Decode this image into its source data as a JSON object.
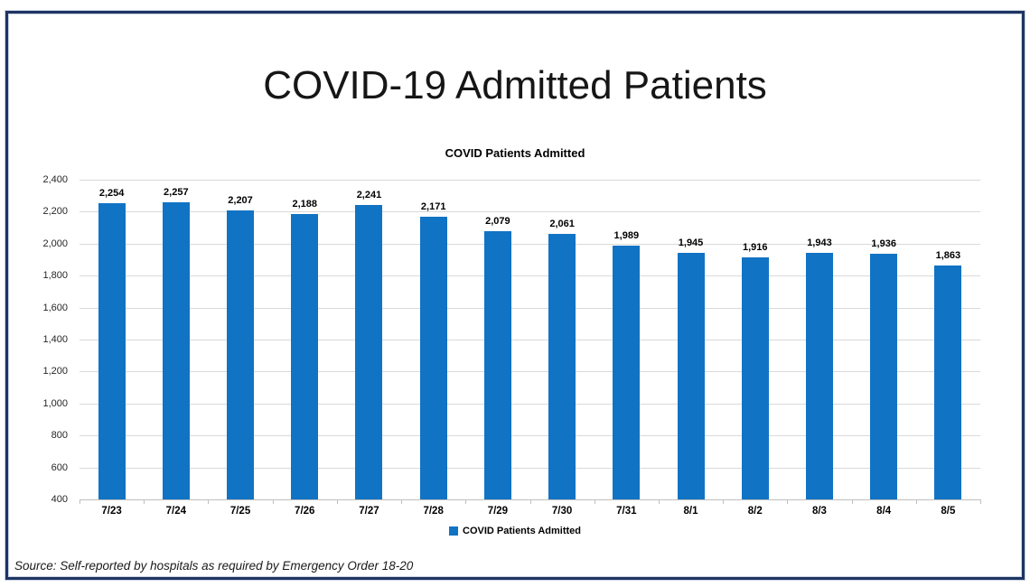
{
  "page": {
    "title": "COVID-19 Admitted Patients",
    "source_note": "Source: Self-reported by hospitals as required by Emergency Order 18-20",
    "border_color": "#1e3563",
    "background_color": "#ffffff"
  },
  "chart_data": {
    "type": "bar",
    "title": "COVID Patients Admitted",
    "categories": [
      "7/23",
      "7/24",
      "7/25",
      "7/26",
      "7/27",
      "7/28",
      "7/29",
      "7/30",
      "7/31",
      "8/1",
      "8/2",
      "8/3",
      "8/4",
      "8/5"
    ],
    "series": [
      {
        "name": "COVID Patients Admitted",
        "values": [
          2254,
          2257,
          2207,
          2188,
          2241,
          2171,
          2079,
          2061,
          1989,
          1945,
          1916,
          1943,
          1936,
          1863
        ]
      }
    ],
    "data_labels": [
      "2,254",
      "2,257",
      "2,207",
      "2,188",
      "2,241",
      "2,171",
      "2,079",
      "2,061",
      "1,989",
      "1,945",
      "1,916",
      "1,943",
      "1,936",
      "1,863"
    ],
    "xlabel": "",
    "ylabel": "",
    "ylim": [
      400,
      2400
    ],
    "ytick_step": 200,
    "ytick_labels": [
      "400",
      "600",
      "800",
      "1,000",
      "1,200",
      "1,400",
      "1,600",
      "1,800",
      "2,000",
      "2,200",
      "2,400"
    ],
    "grid": true,
    "legend": {
      "position": "bottom",
      "label": "COVID Patients Admitted"
    },
    "bar_color": "#1173c4",
    "gridline_color": "#d9d9d9",
    "axis_color": "#bfbfbf"
  }
}
